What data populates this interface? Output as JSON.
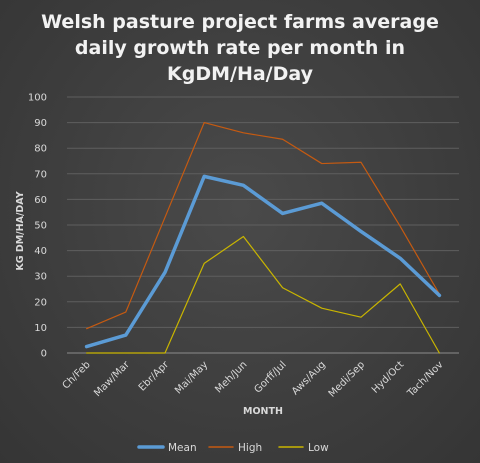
{
  "chart_data": {
    "type": "line",
    "title": "Welsh pasture project farms average daily growth rate per month in KgDM/Ha/Day",
    "title_lines": [
      "Welsh pasture project farms average",
      "daily growth rate per month in",
      "KgDM/Ha/Day"
    ],
    "xlabel": "MONTH",
    "ylabel": "KG DM/HA/DAY",
    "ylim": [
      0,
      100
    ],
    "yticks": [
      0,
      10,
      20,
      30,
      40,
      50,
      60,
      70,
      80,
      90,
      100
    ],
    "categories": [
      "Ch/Feb",
      "Maw/Mar",
      "Ebr/Apr",
      "Mai/May",
      "Meh/Jun",
      "Gorff/Jul",
      "Aws/Aug",
      "Medi/Sep",
      "Hyd/Oct",
      "Tach/Nov"
    ],
    "grid": true,
    "legend": "bottom",
    "series": [
      {
        "name": "Mean",
        "color": "#5b9bd5",
        "values": [
          2.5,
          7,
          31.5,
          69,
          65.5,
          54.5,
          58.5,
          47.5,
          37,
          22.5
        ]
      },
      {
        "name": "High",
        "color": "#c55a11",
        "values": [
          9.5,
          16,
          53,
          90,
          86,
          83.5,
          74,
          74.5,
          49.5,
          23
        ]
      },
      {
        "name": "Low",
        "color": "#c9b500",
        "values": [
          0,
          0,
          0,
          35,
          45.5,
          25.5,
          17.5,
          14,
          27,
          0
        ]
      }
    ]
  }
}
